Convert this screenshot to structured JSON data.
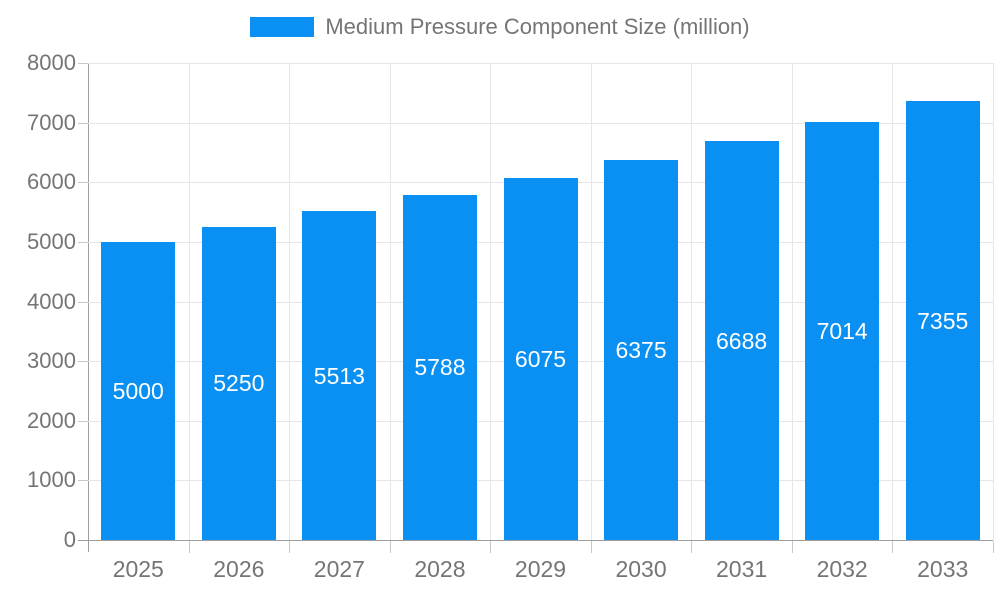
{
  "legend": {
    "series_label": "Medium Pressure Component Size (million)"
  },
  "chart_data": {
    "type": "bar",
    "title": "Medium Pressure Component Size (million)",
    "categories": [
      "2025",
      "2026",
      "2027",
      "2028",
      "2029",
      "2030",
      "2031",
      "2032",
      "2033"
    ],
    "values": [
      5000,
      5250,
      5513,
      5788,
      6075,
      6375,
      6688,
      7014,
      7355
    ],
    "value_labels_inside_bars": true,
    "xlabel": "",
    "ylabel": "",
    "ylim": [
      0,
      8000
    ],
    "ytick_step": 1000,
    "y_tick_labels": [
      "0",
      "1000",
      "2000",
      "3000",
      "4000",
      "5000",
      "6000",
      "7000",
      "8000"
    ],
    "legend_position": "top-center",
    "grid": true,
    "colors": {
      "bar": "#0a90f2",
      "value_label": "#ffffff",
      "axis_line": "#9e9e9e",
      "gridline": "#e6e6e6",
      "tick": "#c9c9c9",
      "label_text": "#757575",
      "background": "#ffffff"
    }
  }
}
